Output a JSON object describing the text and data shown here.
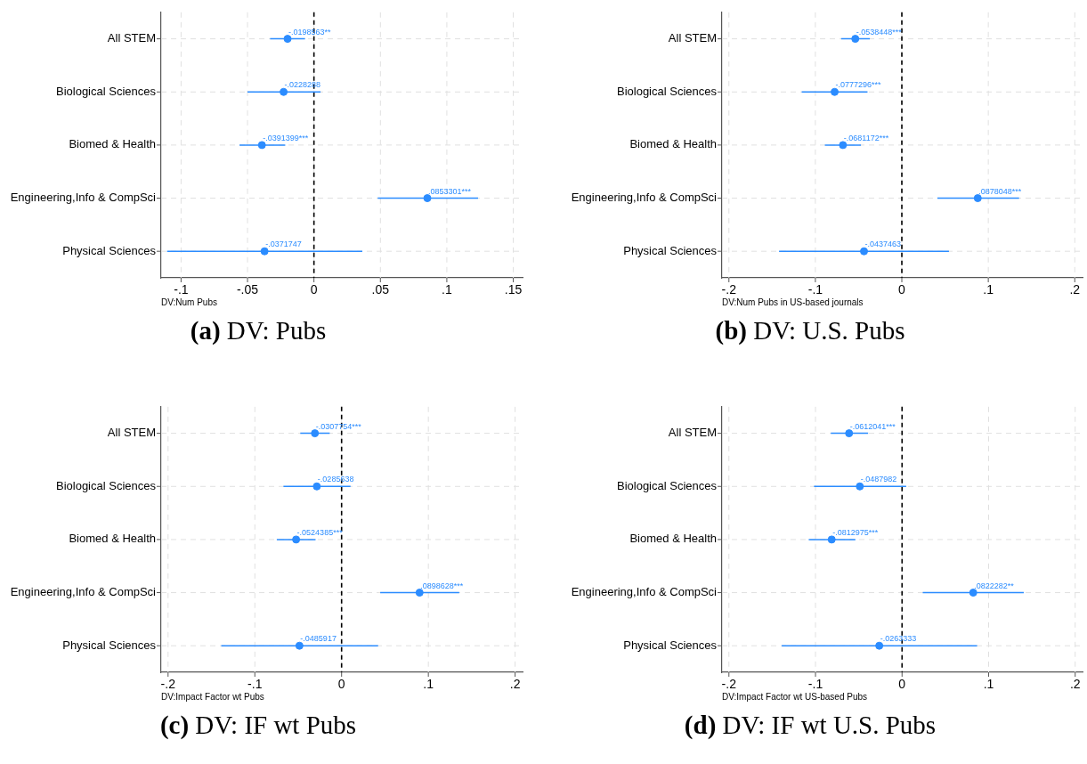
{
  "chart_data": [
    {
      "type": "scatter",
      "orientation": "horizontal",
      "title": "(a) DV: Pubs",
      "xlabel": "DV:Num Pubs",
      "categories": [
        "All STEM",
        "Biological Sciences",
        "Biomed & Health",
        "Engineering,Info & CompSci",
        "Physical Sciences"
      ],
      "color": "#2b8cff",
      "marker": "circle",
      "grid": true,
      "values": [
        -0.0198563,
        -0.0228288,
        -0.0391399,
        0.0853301,
        -0.0371747
      ],
      "errors": [
        [
          -0.033,
          -0.0067
        ],
        [
          -0.05,
          0.005
        ],
        [
          -0.056,
          -0.0216
        ],
        [
          0.048,
          0.1235
        ],
        [
          -0.1105,
          0.0364
        ]
      ],
      "value_labels": [
        "-.0198563**",
        "-.0228288",
        "-.0391399***",
        ".0853301***",
        "-.0371747"
      ],
      "xlim": [
        -0.115,
        0.157
      ],
      "xticks": [
        {
          "value": -0.1,
          "label": "-.1"
        },
        {
          "value": -0.05,
          "label": "-.05"
        },
        {
          "value": 0,
          "label": "0"
        },
        {
          "value": 0.05,
          "label": ".05"
        },
        {
          "value": 0.1,
          "label": ".1"
        },
        {
          "value": 0.15,
          "label": ".15"
        }
      ],
      "ref_lines": [
        {
          "axis": "x",
          "value": 0,
          "color": "#000000",
          "line_style": "dashed"
        }
      ]
    },
    {
      "type": "scatter",
      "orientation": "horizontal",
      "title": "(b) DV: U.S. Pubs",
      "xlabel": "DV:Num Pubs in US-based journals",
      "categories": [
        "All STEM",
        "Biological Sciences",
        "Biomed & Health",
        "Engineering,Info & CompSci",
        "Physical Sciences"
      ],
      "color": "#2b8cff",
      "marker": "circle",
      "grid": true,
      "values": [
        -0.0538448,
        -0.0777296,
        -0.0681172,
        0.0878048,
        -0.0437463
      ],
      "errors": [
        [
          -0.0702,
          -0.037
        ],
        [
          -0.1158,
          -0.0397
        ],
        [
          -0.089,
          -0.0473
        ],
        [
          0.0411,
          0.1356
        ],
        [
          -0.142,
          0.0545
        ]
      ],
      "value_labels": [
        "-.0538448***",
        "-.0777296***",
        "-.0681172***",
        ".0878048***",
        "-.0437463"
      ],
      "xlim": [
        -0.208,
        0.209
      ],
      "xticks": [
        {
          "value": -0.2,
          "label": "-.2"
        },
        {
          "value": -0.1,
          "label": "-.1"
        },
        {
          "value": 0,
          "label": "0"
        },
        {
          "value": 0.1,
          "label": ".1"
        },
        {
          "value": 0.2,
          "label": ".2"
        }
      ],
      "ref_lines": [
        {
          "axis": "x",
          "value": 0,
          "color": "#000000",
          "line_style": "dashed"
        }
      ]
    },
    {
      "type": "scatter",
      "orientation": "horizontal",
      "title": "(c) DV: IF wt Pubs",
      "xlabel": "DV:Impact Factor wt Pubs",
      "categories": [
        "All STEM",
        "Biological Sciences",
        "Biomed & Health",
        "Engineering,Info & CompSci",
        "Physical Sciences"
      ],
      "color": "#2b8cff",
      "marker": "circle",
      "grid": true,
      "values": [
        -0.0307754,
        -0.0285638,
        -0.0524385,
        0.0898628,
        -0.0485917
      ],
      "errors": [
        [
          -0.0476,
          -0.0137
        ],
        [
          -0.067,
          0.0103
        ],
        [
          -0.0747,
          -0.03
        ],
        [
          0.0445,
          0.1356
        ],
        [
          -0.1387,
          0.0421
        ]
      ],
      "value_labels": [
        "-.0307754***",
        "-.0285638",
        "-.0524385***",
        ".0898628***",
        "-.0485917"
      ],
      "xlim": [
        -0.208,
        0.2086
      ],
      "xticks": [
        {
          "value": -0.2,
          "label": "-.2"
        },
        {
          "value": -0.1,
          "label": "-.1"
        },
        {
          "value": 0,
          "label": "0"
        },
        {
          "value": 0.1,
          "label": ".1"
        },
        {
          "value": 0.2,
          "label": ".2"
        }
      ],
      "ref_lines": [
        {
          "axis": "x",
          "value": 0,
          "color": "#000000",
          "line_style": "dashed"
        }
      ]
    },
    {
      "type": "scatter",
      "orientation": "horizontal",
      "title": "(d) DV: IF wt U.S. Pubs",
      "xlabel": "DV:Impact Factor wt US-based Pubs",
      "categories": [
        "All STEM",
        "Biological Sciences",
        "Biomed & Health",
        "Engineering,Info & CompSci",
        "Physical Sciences"
      ],
      "color": "#2b8cff",
      "marker": "circle",
      "grid": true,
      "values": [
        -0.0612041,
        -0.0487982,
        -0.0812975,
        0.0822282,
        -0.0263333
      ],
      "errors": [
        [
          -0.0823,
          -0.0392
        ],
        [
          -0.1017,
          0.0048
        ],
        [
          -0.1078,
          -0.0539
        ],
        [
          0.0239,
          0.1406
        ],
        [
          -0.139,
          0.0867
        ]
      ],
      "value_labels": [
        "-.0612041***",
        "-.0487982",
        "-.0812975***",
        ".0822282**",
        "-.0263333"
      ],
      "xlim": [
        -0.208,
        0.2085
      ],
      "xticks": [
        {
          "value": -0.2,
          "label": "-.2"
        },
        {
          "value": -0.1,
          "label": "-.1"
        },
        {
          "value": 0,
          "label": "0"
        },
        {
          "value": 0.1,
          "label": ".1"
        },
        {
          "value": 0.2,
          "label": ".2"
        }
      ],
      "ref_lines": [
        {
          "axis": "x",
          "value": 0,
          "color": "#000000",
          "line_style": "dashed"
        }
      ]
    }
  ]
}
